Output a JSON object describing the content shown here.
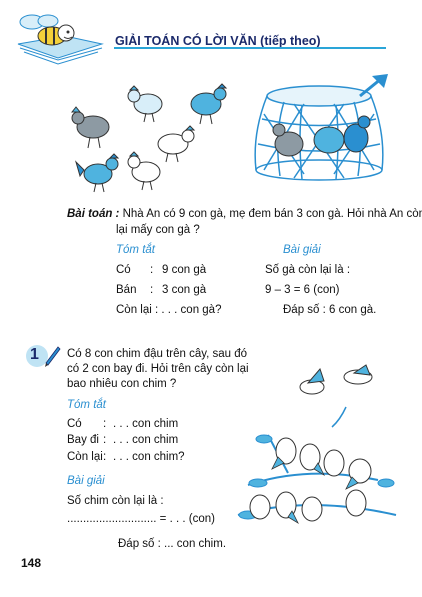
{
  "header": {
    "title": "GIẢI TOÁN CÓ LỜI VĂN (tiếp theo)"
  },
  "example": {
    "label": "Bài toán :",
    "problem_line1": "Nhà An có 9 con gà, mẹ đem bán 3 con gà. Hỏi nhà An còn",
    "problem_line2": "lại mấy con gà ?",
    "summary_heading": "Tóm tắt",
    "summary_rows": [
      {
        "label": "Có",
        "sep": ":",
        "value": "9  con gà"
      },
      {
        "label": "Bán",
        "sep": ":",
        "value": "3  con gà"
      },
      {
        "label": "Còn lại : . . . con gà?",
        "sep": "",
        "value": ""
      }
    ],
    "solution_heading": "Bài giải",
    "solution_lines": [
      "Số gà còn lại là :",
      "9 – 3 = 6 (con)",
      "Đáp số : 6 con gà."
    ]
  },
  "exercise": {
    "number": "1",
    "problem_lines": [
      "Có 8 con chim đậu trên cây, sau đó",
      "có 2 con bay đi. Hỏi trên cây còn lại",
      "bao nhiêu con chim ?"
    ],
    "summary_heading": "Tóm tắt",
    "summary_rows": [
      {
        "label": "Có",
        "sep": ":",
        "value": ". . . con chim"
      },
      {
        "label": "Bay đi",
        "sep": ":",
        "value": ". . . con chim"
      },
      {
        "label": "Còn lại",
        "sep": ":",
        "value": ". . . con chim?"
      }
    ],
    "solution_heading": "Bài giải",
    "solution_line1": "Số chim còn lại là :",
    "solution_line2": "............................ = . . . (con)",
    "answer_line": "Đáp số : ... con chim."
  },
  "footer": {
    "page_number": "148"
  },
  "colors": {
    "title": "#1b2a6b",
    "accent_blue": "#2a8fd0",
    "illustration_blue": "#4fb3df"
  }
}
